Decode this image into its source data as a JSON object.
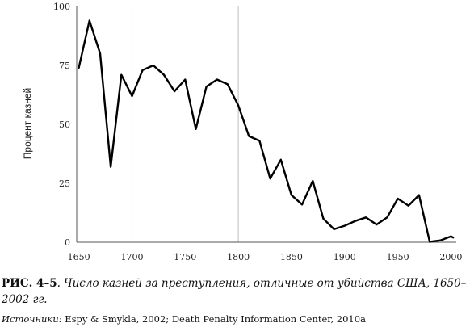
{
  "chart_data": {
    "type": "line",
    "title": "",
    "xlabel": "",
    "ylabel": "Процент казней",
    "xlim": [
      1648,
      2005
    ],
    "ylim": [
      0,
      100
    ],
    "xticks": [
      1650,
      1700,
      1750,
      1800,
      1850,
      1900,
      1950,
      2000
    ],
    "yticks": [
      0,
      25,
      50,
      75,
      100
    ],
    "ytick_labels": [
      "0",
      "25",
      "50",
      "75",
      "100"
    ],
    "xtick_labels": [
      "1650",
      "1700",
      "1750",
      "1800",
      "1850",
      "1900",
      "1950",
      "2000"
    ],
    "vertical_lines": [
      1700,
      1800
    ],
    "line_color": "#000000",
    "grid": false,
    "series": [
      {
        "x": [
          1650,
          1660,
          1670,
          1680,
          1690,
          1700,
          1710,
          1720,
          1730,
          1740,
          1750,
          1760,
          1770,
          1780,
          1790,
          1800,
          1810,
          1820,
          1830,
          1840,
          1850,
          1860,
          1870,
          1880,
          1890,
          1900,
          1910,
          1920,
          1930,
          1940,
          1950,
          1960,
          1970,
          1980,
          1990,
          2000,
          2002
        ],
        "y": [
          74,
          94,
          80,
          32,
          71,
          62,
          73,
          75,
          71,
          64,
          69,
          48,
          66,
          69,
          67,
          58,
          45,
          43,
          27,
          35,
          20,
          16,
          26,
          10,
          5.5,
          7,
          9,
          10.5,
          7.5,
          10.5,
          18.5,
          15.5,
          20,
          0.2,
          0.8,
          2.5,
          2
        ]
      }
    ]
  },
  "caption": {
    "figure_label": "РИС. 4–5",
    "title": ". Число казней за преступления, отличные от убийства США, 1650–2002 гг."
  },
  "sources": {
    "label": "Источники:",
    "text": " Espy & Smykla, 2002; Death Penalty Information Center, 2010a"
  }
}
